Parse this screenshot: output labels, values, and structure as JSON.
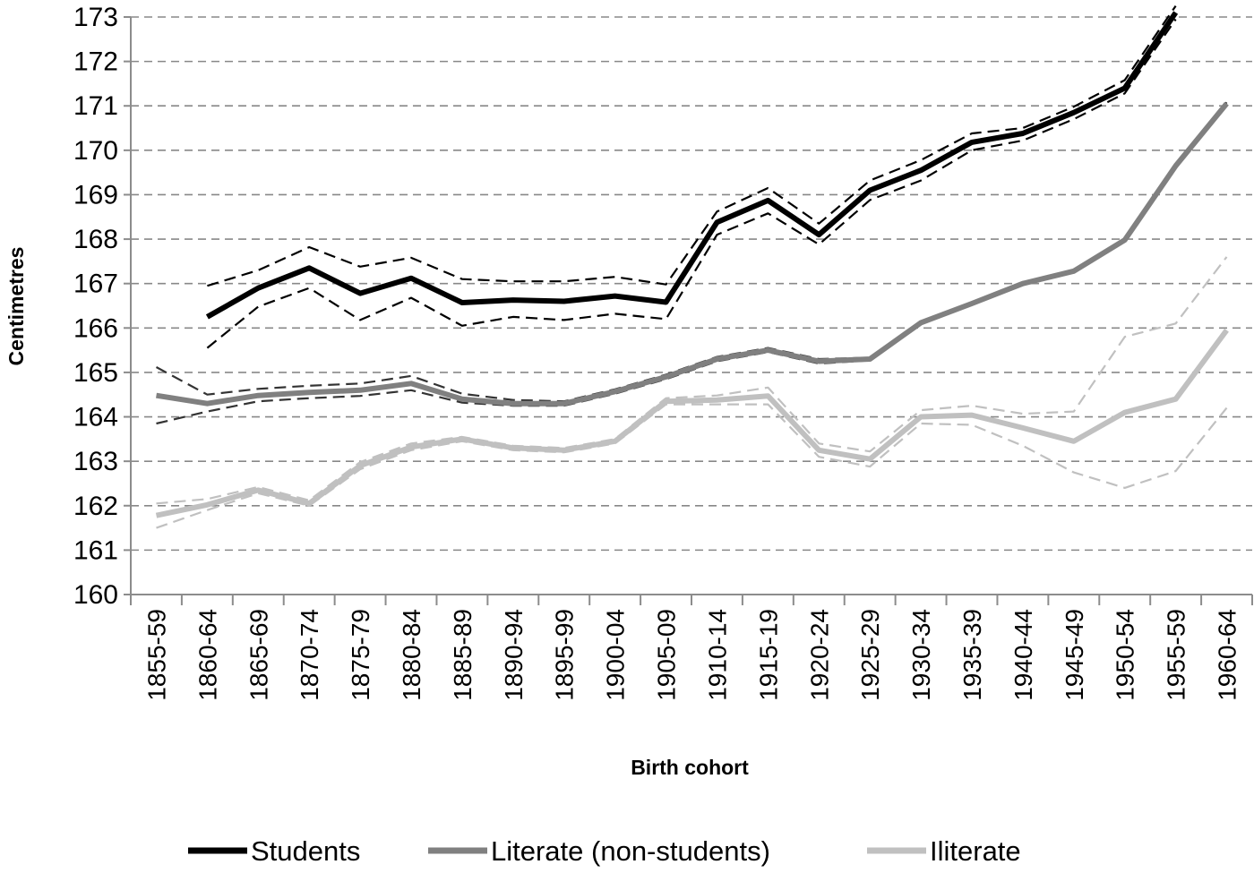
{
  "chart_data": {
    "type": "line",
    "title": "",
    "xlabel": "Birth cohort",
    "ylabel": "Centimetres",
    "ylim": [
      160,
      173
    ],
    "yticks": [
      160,
      161,
      162,
      163,
      164,
      165,
      166,
      167,
      168,
      169,
      170,
      171,
      172,
      173
    ],
    "grid": "horizontal dashed",
    "legend_position": "bottom",
    "categories": [
      "1855-59",
      "1860-64",
      "1865-69",
      "1870-74",
      "1875-79",
      "1880-84",
      "1885-89",
      "1890-94",
      "1895-99",
      "1900-04",
      "1905-09",
      "1910-14",
      "1915-19",
      "1920-24",
      "1925-29",
      "1930-34",
      "1935-39",
      "1940-44",
      "1945-49",
      "1950-54",
      "1955-59",
      "1960-64"
    ],
    "series": [
      {
        "name": "Students",
        "color": "#000000",
        "style": "solid",
        "in_legend": true,
        "values": [
          null,
          166.25,
          166.9,
          167.35,
          166.78,
          167.12,
          166.57,
          166.63,
          166.6,
          166.72,
          166.58,
          168.38,
          168.87,
          168.1,
          169.1,
          169.55,
          170.18,
          170.38,
          170.85,
          171.4,
          173.1,
          null
        ]
      },
      {
        "name": "Students upper bound",
        "color": "#000000",
        "style": "dashed",
        "in_legend": false,
        "values": [
          null,
          166.95,
          167.3,
          167.82,
          167.38,
          167.58,
          167.1,
          167.05,
          167.05,
          167.15,
          166.98,
          168.62,
          169.15,
          168.35,
          169.32,
          169.78,
          170.38,
          170.5,
          170.98,
          171.58,
          173.25,
          null
        ]
      },
      {
        "name": "Students lower bound",
        "color": "#000000",
        "style": "dashed",
        "in_legend": false,
        "values": [
          null,
          165.55,
          166.48,
          166.9,
          166.18,
          166.68,
          166.05,
          166.25,
          166.18,
          166.32,
          166.2,
          168.1,
          168.58,
          167.88,
          168.88,
          169.32,
          170.0,
          170.22,
          170.7,
          171.28,
          172.95,
          null
        ]
      },
      {
        "name": "Literate (non-students)",
        "color": "#808080",
        "style": "solid",
        "in_legend": true,
        "values": [
          164.48,
          164.3,
          164.48,
          164.55,
          164.6,
          164.75,
          164.4,
          164.3,
          164.3,
          164.57,
          164.9,
          165.3,
          165.5,
          165.25,
          165.3,
          166.12,
          166.55,
          167.0,
          167.28,
          167.98,
          169.65,
          171.05
        ]
      },
      {
        "name": "Literate upper bound",
        "color": "#333333",
        "style": "dashed",
        "in_legend": false,
        "values": [
          165.12,
          164.5,
          164.63,
          164.7,
          164.75,
          164.92,
          164.52,
          164.38,
          164.35,
          164.62,
          164.95,
          165.35,
          165.55,
          165.3,
          165.33,
          166.15,
          166.58,
          167.03,
          167.3,
          168.0,
          169.68,
          171.08
        ]
      },
      {
        "name": "Literate lower bound",
        "color": "#333333",
        "style": "dashed",
        "in_legend": false,
        "values": [
          163.85,
          164.12,
          164.35,
          164.42,
          164.47,
          164.6,
          164.32,
          164.25,
          164.25,
          164.52,
          164.85,
          165.25,
          165.46,
          165.2,
          165.27,
          166.09,
          166.52,
          166.97,
          167.26,
          167.95,
          169.62,
          171.02
        ]
      },
      {
        "name": "Iliterate",
        "color": "#c0c0c0",
        "style": "solid",
        "in_legend": true,
        "values": [
          161.78,
          162.02,
          162.35,
          162.05,
          162.9,
          163.32,
          163.5,
          163.3,
          163.25,
          163.45,
          164.35,
          164.38,
          164.47,
          163.25,
          163.05,
          164.0,
          164.04,
          163.75,
          163.45,
          164.1,
          164.4,
          165.95
        ]
      },
      {
        "name": "Iliterate upper bound",
        "color": "#c0c0c0",
        "style": "dashed",
        "in_legend": false,
        "values": [
          162.05,
          162.15,
          162.42,
          162.12,
          162.98,
          163.4,
          163.55,
          163.35,
          163.3,
          163.5,
          164.42,
          164.48,
          164.66,
          163.4,
          163.22,
          164.15,
          164.25,
          164.07,
          164.12,
          165.8,
          166.1,
          167.6
        ]
      },
      {
        "name": "Iliterate lower bound",
        "color": "#c0c0c0",
        "style": "dashed",
        "in_legend": false,
        "values": [
          161.5,
          161.9,
          162.28,
          162.0,
          162.82,
          163.25,
          163.45,
          163.25,
          163.2,
          163.4,
          164.28,
          164.28,
          164.28,
          163.1,
          162.88,
          163.85,
          163.82,
          163.35,
          162.75,
          162.4,
          162.78,
          164.2
        ]
      }
    ]
  }
}
